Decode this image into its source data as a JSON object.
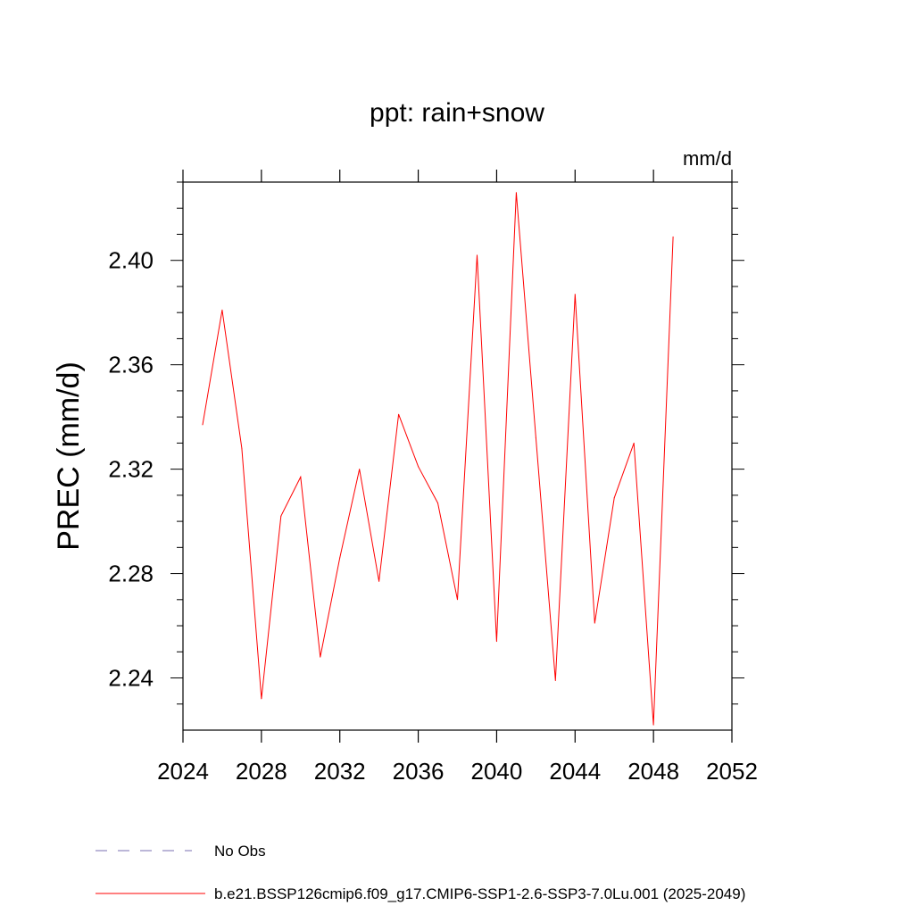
{
  "chart_data": {
    "type": "line",
    "title": "ppt: rain+snow",
    "units_label": "mm/d",
    "ylabel": "PREC  (mm/d)",
    "xlabel": "",
    "xlim": [
      2024,
      2052
    ],
    "ylim": [
      2.22,
      2.43
    ],
    "x_ticks": [
      2024,
      2028,
      2032,
      2036,
      2040,
      2044,
      2048,
      2052
    ],
    "x_tick_labels": [
      "2024",
      "2028",
      "2032",
      "2036",
      "2040",
      "2044",
      "2048",
      "2052"
    ],
    "y_ticks": [
      2.24,
      2.28,
      2.32,
      2.36,
      2.4
    ],
    "y_tick_labels": [
      "2.24",
      "2.28",
      "2.32",
      "2.36",
      "2.40"
    ],
    "grid": false,
    "legend_position": "bottom",
    "series": [
      {
        "name": "b.e21.BSSP126cmip6.f09_g17.CMIP6-SSP1-2.6-SSP3-7.0Lu.001 (2025-2049)",
        "color": "#ff0000",
        "x": [
          2025,
          2026,
          2027,
          2028,
          2029,
          2030,
          2031,
          2032,
          2033,
          2034,
          2035,
          2036,
          2037,
          2038,
          2039,
          2040,
          2041,
          2042,
          2043,
          2044,
          2045,
          2046,
          2047,
          2048,
          2049
        ],
        "values": [
          2.337,
          2.381,
          2.328,
          2.232,
          2.302,
          2.317,
          2.248,
          2.286,
          2.32,
          2.277,
          2.341,
          2.321,
          2.307,
          2.27,
          2.402,
          2.254,
          2.426,
          2.332,
          2.239,
          2.387,
          2.261,
          2.309,
          2.33,
          2.222,
          2.409
        ]
      }
    ],
    "legend": [
      {
        "label": "No Obs",
        "color": "#7a6fb0",
        "style": "dashed"
      },
      {
        "label": "b.e21.BSSP126cmip6.f09_g17.CMIP6-SSP1-2.6-SSP3-7.0Lu.001 (2025-2049)",
        "color": "#ff0000",
        "style": "solid"
      }
    ]
  }
}
